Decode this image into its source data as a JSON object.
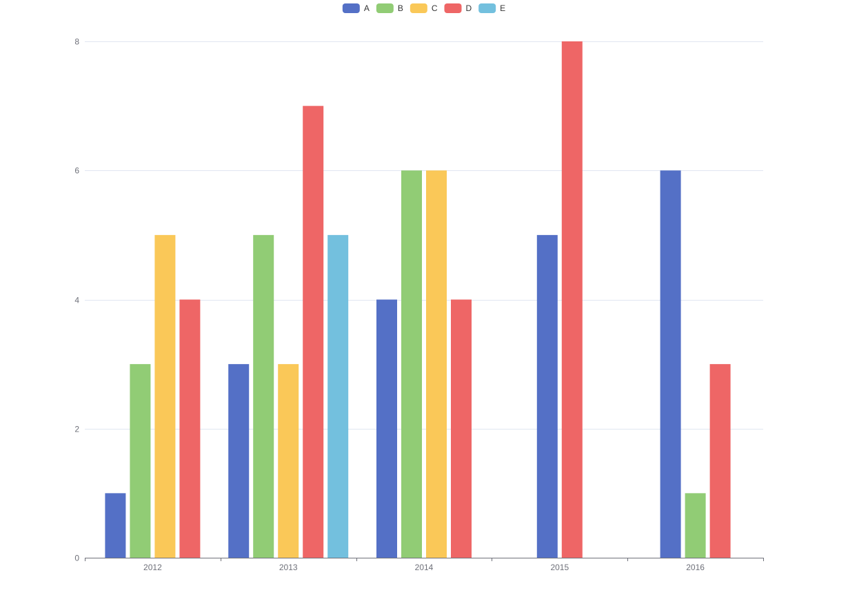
{
  "chart_data": {
    "type": "bar",
    "title": "",
    "xlabel": "",
    "ylabel": "",
    "categories": [
      "2012",
      "2013",
      "2014",
      "2015",
      "2016"
    ],
    "ylim": [
      0,
      8
    ],
    "yticks": [
      0,
      2,
      4,
      6,
      8
    ],
    "grid": true,
    "legend_position": "top-center",
    "series": [
      {
        "name": "A",
        "color": "#5470c6",
        "values": [
          1,
          3,
          4,
          5,
          6
        ]
      },
      {
        "name": "B",
        "color": "#91cc75",
        "values": [
          3,
          5,
          6,
          null,
          1
        ]
      },
      {
        "name": "C",
        "color": "#fac858",
        "values": [
          5,
          3,
          6,
          null,
          null
        ]
      },
      {
        "name": "D",
        "color": "#ee6666",
        "values": [
          4,
          7,
          4,
          8,
          3
        ]
      },
      {
        "name": "E",
        "color": "#73c0de",
        "values": [
          null,
          5,
          null,
          null,
          null
        ]
      }
    ]
  }
}
